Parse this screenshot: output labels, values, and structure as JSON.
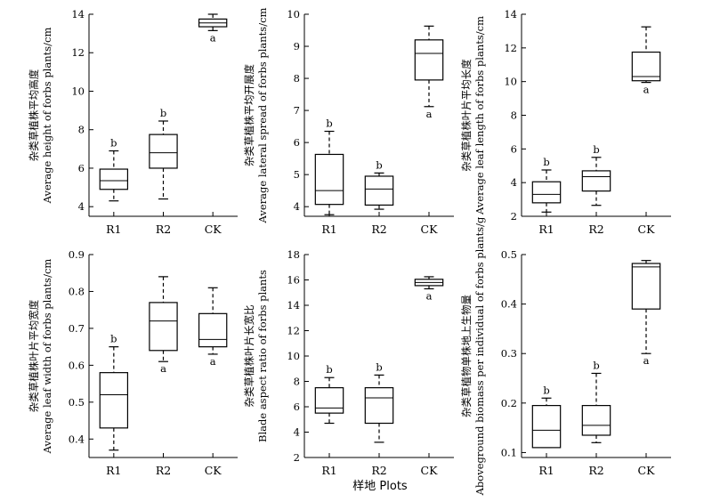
{
  "figure": {
    "x_title": "样地 Plots"
  },
  "chart_data": [
    {
      "type": "box",
      "ylabel_cn": "杂类草植株平均高度",
      "ylabel_en": "Average height of forbs plants/cm",
      "categories": [
        "R1",
        "R2",
        "CK"
      ],
      "ylim": [
        3.5,
        14
      ],
      "yticks": [
        4,
        6,
        8,
        10,
        12,
        14
      ],
      "boxes": [
        {
          "min": 4.3,
          "q1": 4.9,
          "median": 5.35,
          "q3": 5.95,
          "max": 6.9,
          "label": "b"
        },
        {
          "min": 4.4,
          "q1": 6.0,
          "median": 6.8,
          "q3": 7.75,
          "max": 8.45,
          "label": "b"
        },
        {
          "min": 13.15,
          "q1": 13.35,
          "median": 13.55,
          "q3": 13.75,
          "max": 14.0,
          "label": "a"
        }
      ]
    },
    {
      "type": "box",
      "ylabel_cn": "杂类草植株平均开展度",
      "ylabel_en": "Average lateral spread of forbs plants/cm",
      "categories": [
        "R1",
        "R2",
        "CK"
      ],
      "ylim": [
        3.7,
        10
      ],
      "yticks": [
        4,
        5,
        6,
        7,
        8,
        9,
        10
      ],
      "boxes": [
        {
          "min": 3.75,
          "q1": 4.07,
          "median": 4.5,
          "q3": 5.63,
          "max": 6.35,
          "label": "b"
        },
        {
          "min": 3.92,
          "q1": 4.05,
          "median": 4.55,
          "q3": 4.95,
          "max": 5.05,
          "label": "b"
        },
        {
          "min": 7.12,
          "q1": 7.95,
          "median": 8.78,
          "q3": 9.2,
          "max": 9.63,
          "label": "a"
        }
      ]
    },
    {
      "type": "box",
      "ylabel_cn": "杂类草植株叶片平均长度",
      "ylabel_en": "Average leaf length of forbs plants/cm",
      "categories": [
        "R1",
        "R2",
        "CK"
      ],
      "ylim": [
        2,
        14
      ],
      "yticks": [
        2,
        4,
        6,
        8,
        10,
        12,
        14
      ],
      "boxes": [
        {
          "min": 2.25,
          "q1": 2.8,
          "median": 3.3,
          "q3": 4.05,
          "max": 4.75,
          "label": "b"
        },
        {
          "min": 2.65,
          "q1": 3.5,
          "median": 4.35,
          "q3": 4.7,
          "max": 5.5,
          "label": "b"
        },
        {
          "min": 9.95,
          "q1": 10.05,
          "median": 10.3,
          "q3": 11.75,
          "max": 13.25,
          "label": "a"
        }
      ]
    },
    {
      "type": "box",
      "ylabel_cn": "杂类草植株叶片平均宽度",
      "ylabel_en": "Average leaf width of forbs plants/cm",
      "categories": [
        "R1",
        "R2",
        "CK"
      ],
      "ylim": [
        0.35,
        0.9
      ],
      "yticks": [
        0.4,
        0.5,
        0.6,
        0.7,
        0.8,
        0.9
      ],
      "boxes": [
        {
          "min": 0.37,
          "q1": 0.43,
          "median": 0.52,
          "q3": 0.58,
          "max": 0.65,
          "label": "b"
        },
        {
          "min": 0.61,
          "q1": 0.64,
          "median": 0.72,
          "q3": 0.77,
          "max": 0.84,
          "label": "a"
        },
        {
          "min": 0.63,
          "q1": 0.65,
          "median": 0.67,
          "q3": 0.74,
          "max": 0.81,
          "label": "a"
        }
      ]
    },
    {
      "type": "box",
      "ylabel_cn": "杂类草植株叶片长宽比",
      "ylabel_en": "Blade aspect ratio of forbs plants",
      "categories": [
        "R1",
        "R2",
        "CK"
      ],
      "ylim": [
        2,
        18
      ],
      "yticks": [
        2,
        4,
        6,
        8,
        10,
        12,
        14,
        16,
        18
      ],
      "boxes": [
        {
          "min": 4.7,
          "q1": 5.5,
          "median": 5.9,
          "q3": 7.5,
          "max": 8.3,
          "label": "b"
        },
        {
          "min": 3.2,
          "q1": 4.7,
          "median": 6.7,
          "q3": 7.5,
          "max": 8.5,
          "label": "b"
        },
        {
          "min": 15.3,
          "q1": 15.55,
          "median": 15.8,
          "q3": 16.05,
          "max": 16.25,
          "label": "a"
        }
      ]
    },
    {
      "type": "box",
      "ylabel_cn": "杂类草植物单株地上生物量",
      "ylabel_en": "Aboveground biomass per individual of forbs plants/g",
      "categories": [
        "R1",
        "R2",
        "CK"
      ],
      "ylim": [
        0.09,
        0.5
      ],
      "yticks": [
        0.1,
        0.2,
        0.3,
        0.4,
        0.5
      ],
      "boxes": [
        {
          "min": 0.11,
          "q1": 0.11,
          "median": 0.145,
          "q3": 0.195,
          "max": 0.21,
          "label": "b"
        },
        {
          "min": 0.12,
          "q1": 0.135,
          "median": 0.155,
          "q3": 0.195,
          "max": 0.26,
          "label": "b"
        },
        {
          "min": 0.3,
          "q1": 0.39,
          "median": 0.475,
          "q3": 0.482,
          "max": 0.488,
          "label": "a"
        }
      ]
    }
  ]
}
